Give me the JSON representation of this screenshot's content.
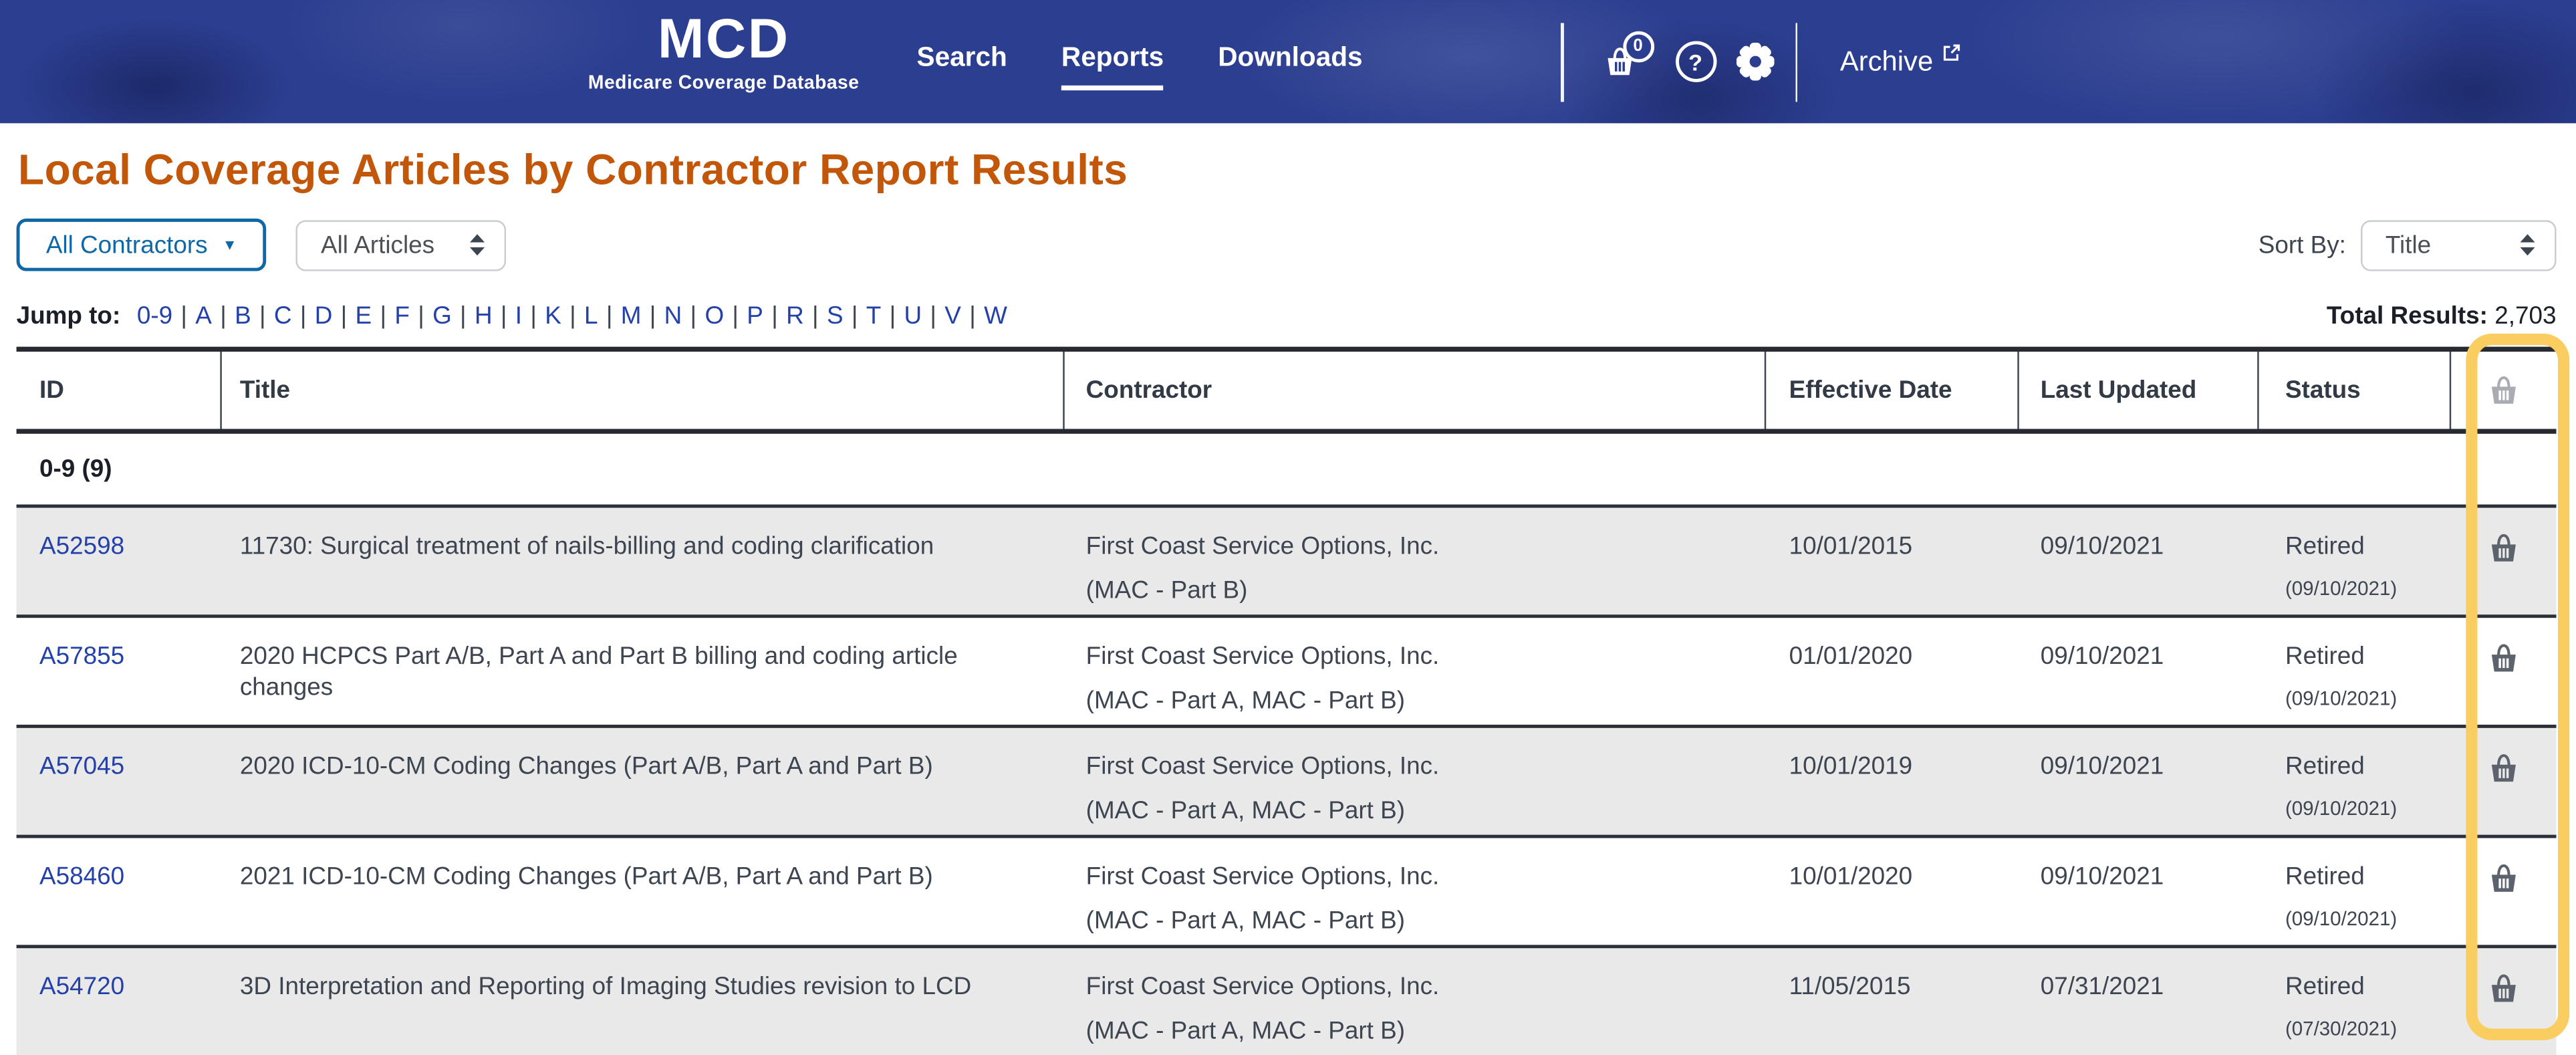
{
  "navbar": {
    "logo": "MCD",
    "logo_sub": "Medicare Coverage Database",
    "items": [
      {
        "label": "Search",
        "active": false
      },
      {
        "label": "Reports",
        "active": true
      },
      {
        "label": "Downloads",
        "active": false
      }
    ],
    "cart_count": "0",
    "help_glyph": "?",
    "archive_label": "Archive",
    "icons": [
      "basket-icon",
      "help-icon",
      "gear-icon",
      "external-link-icon"
    ],
    "colors": {
      "navbar_bg": "#2c3e90"
    }
  },
  "page": {
    "title": "Local Coverage Articles by Contractor Report Results",
    "title_color": "#c2570a"
  },
  "filters": {
    "contractors_label": "All Contractors",
    "articles_value": "All Articles",
    "sort_label": "Sort By:",
    "sort_value": "Title"
  },
  "jump": {
    "label": "Jump to:",
    "separator": "|",
    "links": [
      "0-9",
      "A",
      "B",
      "C",
      "D",
      "E",
      "F",
      "G",
      "H",
      "I",
      "K",
      "L",
      "M",
      "N",
      "O",
      "P",
      "R",
      "S",
      "T",
      "U",
      "V",
      "W"
    ],
    "link_color": "#2341a8"
  },
  "results": {
    "total_label": "Total Results:",
    "total_value": "2,703"
  },
  "table": {
    "headers": {
      "id": "ID",
      "title": "Title",
      "contractor": "Contractor",
      "effective_date": "Effective Date",
      "last_updated": "Last Updated",
      "status": "Status"
    },
    "group_label": "0-9 (9)",
    "highlight_color": "#f9cd5f",
    "rows": [
      {
        "id": "A52598",
        "title": "11730: Surgical treatment of nails-billing and coding clarification",
        "contractor": "First Coast Service Options, Inc.",
        "contractor_type": "(MAC - Part B)",
        "effective_date": "10/01/2015",
        "last_updated": "09/10/2021",
        "status": "Retired",
        "status_date": "(09/10/2021)"
      },
      {
        "id": "A57855",
        "title": "2020 HCPCS Part A/B, Part A and Part B billing and coding article changes",
        "contractor": "First Coast Service Options, Inc.",
        "contractor_type": "(MAC - Part A, MAC - Part B)",
        "effective_date": "01/01/2020",
        "last_updated": "09/10/2021",
        "status": "Retired",
        "status_date": "(09/10/2021)"
      },
      {
        "id": "A57045",
        "title": "2020 ICD-10-CM Coding Changes (Part A/B, Part A and Part B)",
        "contractor": "First Coast Service Options, Inc.",
        "contractor_type": "(MAC - Part A, MAC - Part B)",
        "effective_date": "10/01/2019",
        "last_updated": "09/10/2021",
        "status": "Retired",
        "status_date": "(09/10/2021)"
      },
      {
        "id": "A58460",
        "title": "2021 ICD-10-CM Coding Changes (Part A/B, Part A and Part B)",
        "contractor": "First Coast Service Options, Inc.",
        "contractor_type": "(MAC - Part A, MAC - Part B)",
        "effective_date": "10/01/2020",
        "last_updated": "09/10/2021",
        "status": "Retired",
        "status_date": "(09/10/2021)"
      },
      {
        "id": "A54720",
        "title": "3D Interpretation and Reporting of Imaging Studies revision to LCD",
        "contractor": "First Coast Service Options, Inc.",
        "contractor_type": "(MAC - Part A, MAC - Part B)",
        "effective_date": "11/05/2015",
        "last_updated": "07/31/2021",
        "status": "Retired",
        "status_date": "(07/30/2021)"
      }
    ]
  }
}
